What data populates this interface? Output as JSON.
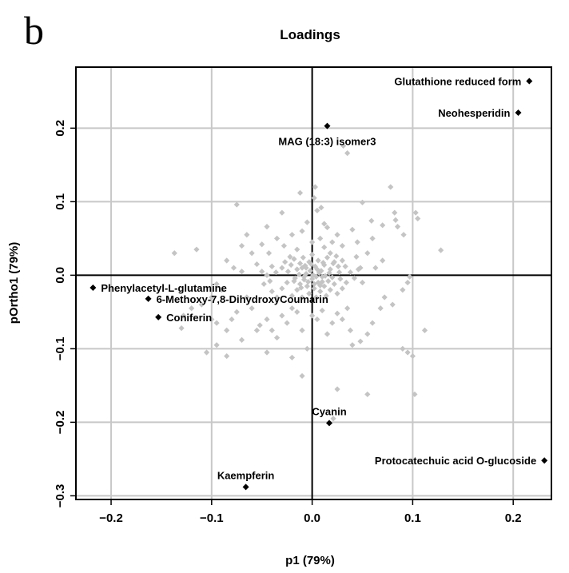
{
  "panel_letter": "b",
  "colors": {
    "background_points": "#c4c4c4",
    "labeled_points": "#000000",
    "grid": "#c8c8c8",
    "reference_lines": "#000000"
  },
  "chart_data": {
    "type": "scatter",
    "title": "Loadings",
    "xlabel": "p1 (79%)",
    "ylabel": "pOrtho1 (79%)",
    "xlim": [
      -0.235,
      0.238
    ],
    "ylim": [
      -0.305,
      0.283
    ],
    "xticks": [
      -0.2,
      -0.1,
      0.0,
      0.1,
      0.2
    ],
    "yticks": [
      -0.3,
      -0.2,
      -0.1,
      0.0,
      0.1,
      0.2
    ],
    "xtick_labels": [
      "−0.2",
      "−0.1",
      "0.0",
      "0.1",
      "0.2"
    ],
    "ytick_labels": [
      "−0.3",
      "−0.2",
      "−0.1",
      "0.0",
      "0.1",
      "0.2"
    ],
    "grid": true,
    "reference_lines": {
      "x": 0.0,
      "y": 0.0
    },
    "marker": "diamond",
    "labeled_points": [
      {
        "label": "Glutathione reduced form",
        "x": 0.216,
        "y": 0.264,
        "label_side": "left"
      },
      {
        "label": "Neohesperidin",
        "x": 0.205,
        "y": 0.221,
        "label_side": "left"
      },
      {
        "label": "MAG (18:3) isomer3",
        "x": 0.015,
        "y": 0.203,
        "label_side": "below"
      },
      {
        "label": "Phenylacetyl-L-glutamine",
        "x": -0.218,
        "y": -0.017,
        "label_side": "right"
      },
      {
        "label": "6-Methoxy-7,8-DihydroxyCoumarin",
        "x": -0.163,
        "y": -0.032,
        "label_side": "right"
      },
      {
        "label": "Coniferin",
        "x": -0.153,
        "y": -0.057,
        "label_side": "right"
      },
      {
        "label": "Cyanin",
        "x": 0.017,
        "y": -0.201,
        "label_side": "above"
      },
      {
        "label": "Protocatechuic acid O-glucoside",
        "x": 0.231,
        "y": -0.252,
        "label_side": "left"
      },
      {
        "label": "Kaempferin",
        "x": -0.066,
        "y": -0.288,
        "label_side": "above"
      }
    ],
    "background_points": [
      [
        -0.137,
        0.03
      ],
      [
        -0.115,
        0.035
      ],
      [
        -0.075,
        0.096
      ],
      [
        -0.045,
        0.066
      ],
      [
        -0.065,
        0.055
      ],
      [
        -0.03,
        0.085
      ],
      [
        -0.012,
        0.112
      ],
      [
        0.002,
        0.105
      ],
      [
        0.003,
        0.12
      ],
      [
        0.009,
        0.092
      ],
      [
        0.031,
        0.176
      ],
      [
        0.035,
        0.166
      ],
      [
        0.05,
        0.099
      ],
      [
        0.059,
        0.074
      ],
      [
        0.07,
        0.068
      ],
      [
        0.078,
        0.12
      ],
      [
        0.082,
        0.085
      ],
      [
        0.083,
        0.075
      ],
      [
        0.085,
        0.066
      ],
      [
        0.091,
        0.055
      ],
      [
        0.103,
        0.085
      ],
      [
        0.105,
        0.077
      ],
      [
        0.128,
        0.034
      ],
      [
        0.097,
        -0.002
      ],
      [
        0.095,
        -0.01
      ],
      [
        0.045,
        0.045
      ],
      [
        0.04,
        0.062
      ],
      [
        0.025,
        0.055
      ],
      [
        0.03,
        0.04
      ],
      [
        0.015,
        0.065
      ],
      [
        0.06,
        0.05
      ],
      [
        0.055,
        0.03
      ],
      [
        0.07,
        0.02
      ],
      [
        0.063,
        0.01
      ],
      [
        0.048,
        0.01
      ],
      [
        0.044,
        0.025
      ],
      [
        -0.07,
        0.04
      ],
      [
        -0.06,
        0.03
      ],
      [
        -0.055,
        0.015
      ],
      [
        -0.05,
        0.042
      ],
      [
        -0.043,
        0.03
      ],
      [
        -0.035,
        0.05
      ],
      [
        -0.028,
        0.04
      ],
      [
        -0.02,
        0.055
      ],
      [
        -0.022,
        0.025
      ],
      [
        -0.015,
        0.035
      ],
      [
        -0.01,
        0.06
      ],
      [
        -0.005,
        0.072
      ],
      [
        0.0,
        0.045
      ],
      [
        0.008,
        0.05
      ],
      [
        0.012,
        0.038
      ],
      [
        0.018,
        0.03
      ],
      [
        0.022,
        0.018
      ],
      [
        0.026,
        0.012
      ],
      [
        0.02,
        0.045
      ],
      [
        0.012,
        0.07
      ],
      [
        0.005,
        0.088
      ],
      [
        -0.085,
        0.02
      ],
      [
        -0.078,
        0.01
      ],
      [
        -0.07,
        0.005
      ],
      [
        -0.095,
        -0.012
      ],
      [
        -0.09,
        -0.02
      ],
      [
        -0.1,
        -0.03
      ],
      [
        -0.11,
        -0.04
      ],
      [
        -0.12,
        -0.045
      ],
      [
        -0.128,
        -0.055
      ],
      [
        -0.13,
        -0.072
      ],
      [
        -0.1,
        -0.06
      ],
      [
        -0.095,
        -0.065
      ],
      [
        -0.085,
        -0.075
      ],
      [
        -0.08,
        -0.06
      ],
      [
        -0.075,
        -0.05
      ],
      [
        -0.07,
        -0.088
      ],
      [
        -0.065,
        -0.03
      ],
      [
        -0.06,
        -0.045
      ],
      [
        -0.055,
        -0.075
      ],
      [
        -0.052,
        -0.068
      ],
      [
        -0.045,
        -0.06
      ],
      [
        -0.04,
        -0.075
      ],
      [
        -0.035,
        -0.085
      ],
      [
        -0.03,
        -0.055
      ],
      [
        -0.025,
        -0.065
      ],
      [
        -0.02,
        -0.045
      ],
      [
        -0.015,
        -0.05
      ],
      [
        -0.01,
        -0.075
      ],
      [
        -0.005,
        -0.1
      ],
      [
        0.0,
        -0.055
      ],
      [
        0.005,
        -0.06
      ],
      [
        0.01,
        -0.048
      ],
      [
        0.015,
        -0.08
      ],
      [
        0.02,
        -0.065
      ],
      [
        0.025,
        -0.052
      ],
      [
        0.03,
        -0.06
      ],
      [
        0.035,
        -0.045
      ],
      [
        0.038,
        -0.075
      ],
      [
        0.04,
        -0.095
      ],
      [
        0.048,
        -0.09
      ],
      [
        0.055,
        -0.08
      ],
      [
        0.06,
        -0.065
      ],
      [
        0.068,
        -0.045
      ],
      [
        0.072,
        -0.03
      ],
      [
        0.08,
        -0.04
      ],
      [
        0.09,
        -0.02
      ],
      [
        0.095,
        -0.105
      ],
      [
        0.09,
        -0.1
      ],
      [
        0.1,
        -0.11
      ],
      [
        0.112,
        -0.075
      ],
      [
        0.102,
        -0.162
      ],
      [
        0.055,
        -0.162
      ],
      [
        0.025,
        -0.155
      ],
      [
        0.021,
        -0.195
      ],
      [
        -0.01,
        -0.137
      ],
      [
        -0.02,
        -0.112
      ],
      [
        -0.045,
        -0.105
      ],
      [
        -0.105,
        -0.105
      ],
      [
        -0.095,
        -0.095
      ],
      [
        -0.085,
        -0.11
      ],
      [
        -0.04,
        -0.022
      ],
      [
        -0.035,
        -0.03
      ],
      [
        -0.03,
        -0.018
      ],
      [
        -0.025,
        -0.01
      ],
      [
        -0.02,
        -0.028
      ],
      [
        -0.018,
        -0.008
      ],
      [
        -0.015,
        -0.02
      ],
      [
        -0.012,
        -0.012
      ],
      [
        -0.01,
        -0.03
      ],
      [
        -0.008,
        -0.002
      ],
      [
        -0.005,
        -0.015
      ],
      [
        -0.003,
        -0.025
      ],
      [
        0.0,
        -0.005
      ],
      [
        0.002,
        -0.018
      ],
      [
        0.004,
        -0.03
      ],
      [
        0.006,
        -0.01
      ],
      [
        0.008,
        -0.022
      ],
      [
        0.01,
        -0.002
      ],
      [
        0.012,
        -0.015
      ],
      [
        0.014,
        -0.028
      ],
      [
        0.016,
        -0.008
      ],
      [
        0.018,
        -0.02
      ],
      [
        0.02,
        -0.003
      ],
      [
        0.022,
        -0.012
      ],
      [
        0.025,
        -0.025
      ],
      [
        0.028,
        -0.005
      ],
      [
        0.03,
        -0.018
      ],
      [
        0.034,
        -0.01
      ],
      [
        -0.03,
        0.01
      ],
      [
        -0.027,
        0.018
      ],
      [
        -0.024,
        0.005
      ],
      [
        -0.021,
        0.014
      ],
      [
        -0.018,
        0.022
      ],
      [
        -0.015,
        0.008
      ],
      [
        -0.012,
        0.016
      ],
      [
        -0.009,
        0.024
      ],
      [
        -0.006,
        0.01
      ],
      [
        -0.003,
        0.018
      ],
      [
        0.0,
        0.028
      ],
      [
        0.003,
        0.012
      ],
      [
        0.006,
        0.02
      ],
      [
        0.009,
        0.006
      ],
      [
        0.012,
        0.014
      ],
      [
        0.015,
        0.024
      ],
      [
        0.018,
        0.008
      ],
      [
        0.021,
        0.016
      ],
      [
        0.024,
        0.026
      ],
      [
        0.027,
        0.004
      ],
      [
        0.03,
        0.02
      ],
      [
        0.033,
        0.012
      ],
      [
        -0.036,
        0.004
      ],
      [
        -0.04,
        0.012
      ],
      [
        -0.045,
        0.0
      ],
      [
        -0.05,
        0.005
      ],
      [
        -0.048,
        -0.012
      ],
      [
        -0.042,
        -0.008
      ],
      [
        0.038,
        0.004
      ],
      [
        0.042,
        -0.004
      ],
      [
        0.046,
        0.008
      ],
      [
        0.05,
        -0.01
      ],
      [
        -0.006,
        0.002
      ],
      [
        0.004,
        -0.002
      ],
      [
        -0.002,
        0.006
      ],
      [
        0.007,
        0.003
      ],
      [
        -0.008,
        -0.006
      ],
      [
        0.001,
        0.0
      ],
      [
        -0.013,
        0.001
      ],
      [
        0.013,
        -0.001
      ],
      [
        -0.017,
        -0.004
      ],
      [
        0.017,
        0.003
      ],
      [
        -0.004,
        -0.009
      ],
      [
        0.005,
        0.008
      ],
      [
        -0.01,
        0.01
      ],
      [
        0.01,
        -0.009
      ],
      [
        -0.001,
        0.015
      ],
      [
        0.002,
        -0.012
      ],
      [
        -0.007,
        0.013
      ],
      [
        0.008,
        -0.014
      ],
      [
        -0.011,
        -0.017
      ],
      [
        0.011,
        0.017
      ]
    ]
  }
}
